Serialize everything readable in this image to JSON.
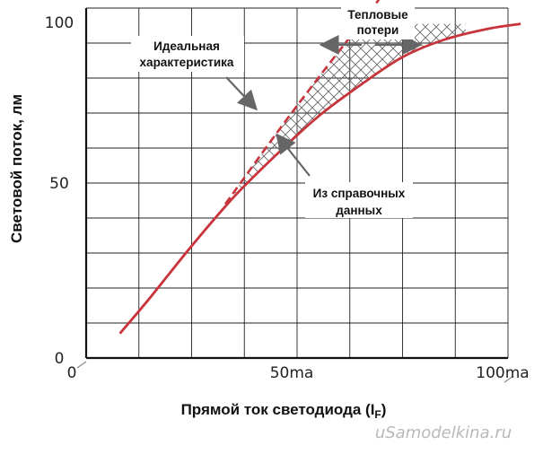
{
  "chart_data": {
    "type": "line",
    "title": "",
    "xlabel": "Прямой ток светодиода (I",
    "xlabel_sub": "F",
    "xlabel_suffix": ")",
    "ylabel": "Световой поток, лм",
    "xlim": [
      0,
      100
    ],
    "ylim": [
      0,
      100
    ],
    "grid": true,
    "x_ticks": [
      {
        "value": 0,
        "label": "0"
      },
      {
        "value": 50,
        "label": "50ma"
      },
      {
        "value": 100,
        "label": "100ma"
      }
    ],
    "y_ticks": [
      {
        "value": 0,
        "label": "0"
      },
      {
        "value": 50,
        "label": "50"
      },
      {
        "value": 100,
        "label": "100"
      }
    ],
    "series": [
      {
        "name": "Из справочных данных",
        "style": "solid",
        "color": "#c8343c",
        "x": [
          8,
          15,
          25,
          35,
          45,
          55,
          65,
          75,
          85,
          95,
          103
        ],
        "y": [
          7,
          17,
          32,
          46,
          58,
          69,
          78,
          86,
          91,
          94,
          95.5
        ]
      },
      {
        "name": "Идеальная характеристика",
        "style": "dashed",
        "color": "#c8343c",
        "x": [
          33,
          45,
          55,
          65,
          71
        ],
        "y": [
          44,
          64,
          80,
          95.5,
          105
        ]
      }
    ],
    "shaded_region": "Тепловые потери",
    "annotations": {
      "ideal": [
        "Идеальная",
        "характеристика"
      ],
      "datasheet": [
        "Из справочных",
        "данных"
      ],
      "thermal": [
        "Тепловые",
        "потери"
      ]
    }
  },
  "watermark": "uSamodelkina.ru"
}
